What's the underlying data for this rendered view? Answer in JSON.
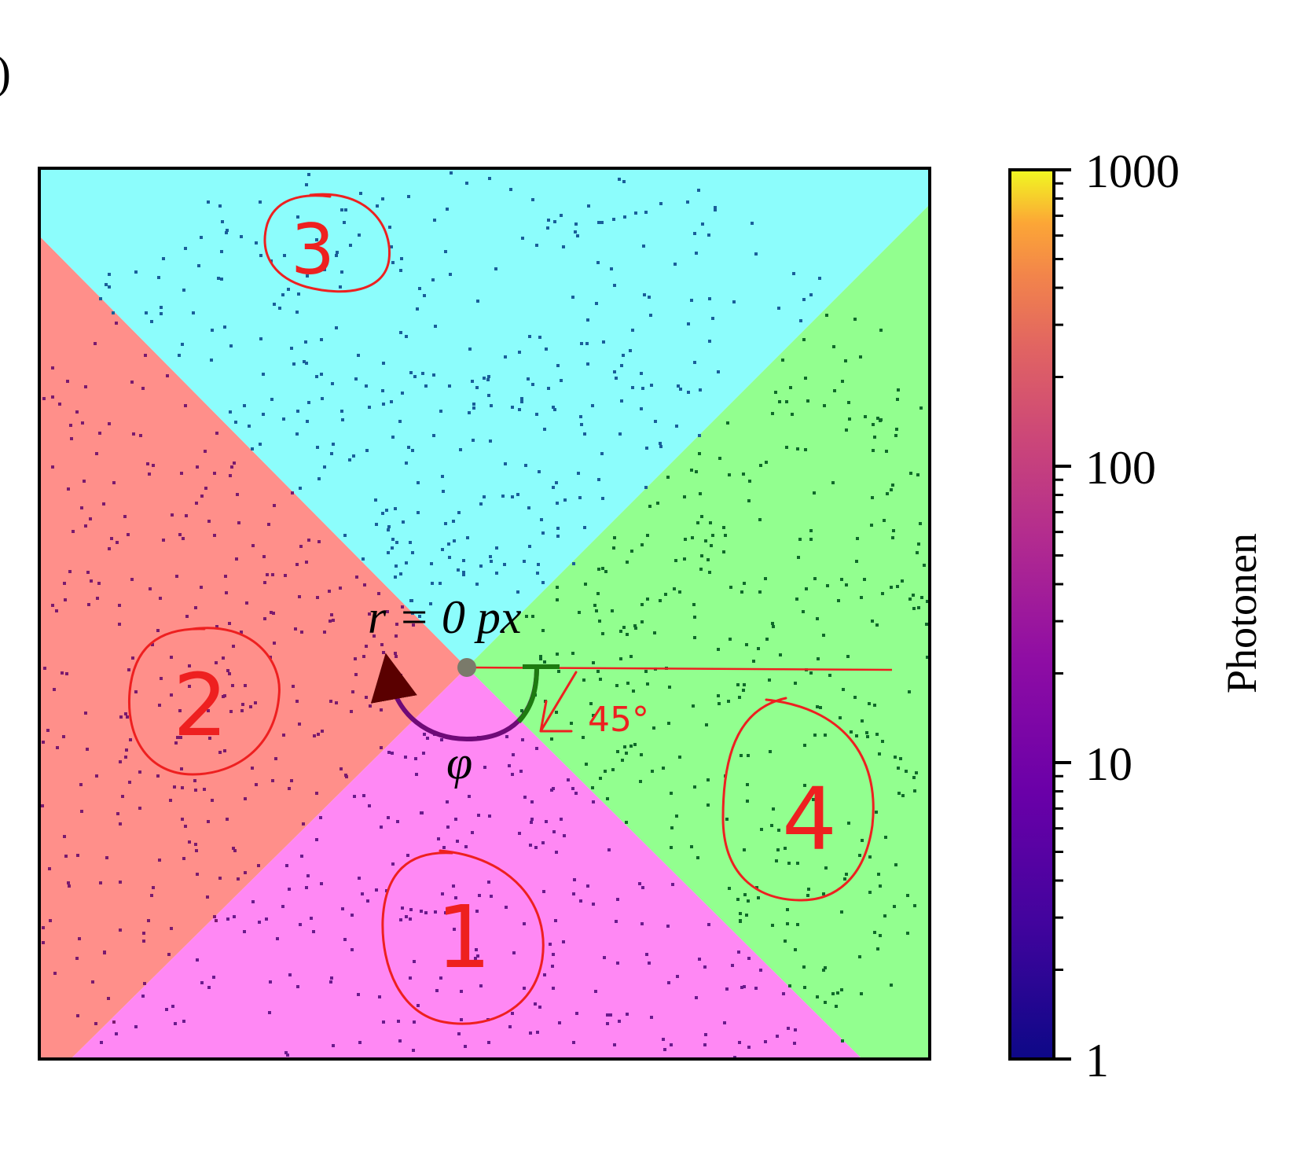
{
  "panel_label": ")",
  "chart_data": {
    "type": "heatmap",
    "title": "",
    "colorbar": {
      "label": "Photonen",
      "scale": "log",
      "range": [
        1,
        1000
      ],
      "ticks": [
        1,
        10,
        100,
        1000
      ],
      "tick_labels": [
        "1",
        "10",
        "100",
        "1000"
      ],
      "colormap": "plasma"
    },
    "segments": [
      {
        "label": "1",
        "color": "#ff88f4",
        "dot_color": "#6a1a8c"
      },
      {
        "label": "2",
        "color": "#ff8f8a",
        "dot_color": "#7a1a6e"
      },
      {
        "label": "3",
        "color": "#8cfdfc",
        "dot_color": "#1a5f9a"
      },
      {
        "label": "4",
        "color": "#92ff8f",
        "dot_color": "#0f6a2a"
      }
    ],
    "annotations": {
      "center": "r = 0 px",
      "angle_symbol": "φ",
      "angle_note": "45°"
    }
  }
}
